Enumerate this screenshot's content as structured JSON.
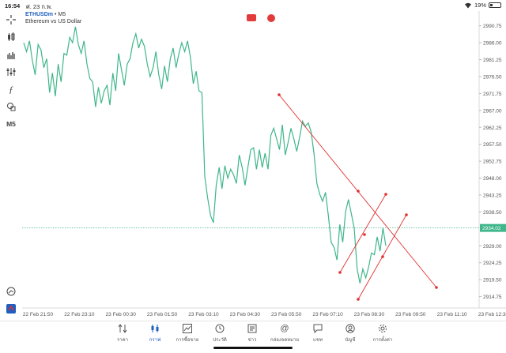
{
  "status_bar": {
    "time": "16:54",
    "date": "ศ. 23 ก.พ.",
    "battery": "19%",
    "battery_level": 0.19
  },
  "legend": {
    "symbol": "ETHUSDm",
    "timeframe": "M5",
    "description": "Ethereum vs US Dollar"
  },
  "toolbar": {
    "timeframe_label": "M5"
  },
  "chart_data": {
    "type": "line",
    "ylim": [
      2912,
      2994
    ],
    "x_tick_labels": [
      "22 Feb 21:50",
      "22 Feb 23:10",
      "23 Feb 00:30",
      "23 Feb 01:50",
      "23 Feb 03:10",
      "23 Feb 04:30",
      "23 Feb 05:50",
      "23 Feb 07:10",
      "23 Feb 08:30",
      "23 Feb 09:50",
      "23 Feb 11:10",
      "23 Feb 12:30"
    ],
    "y_ticks": [
      2990.75,
      2986.0,
      2981.25,
      2976.5,
      2971.75,
      2967.0,
      2962.25,
      2957.5,
      2952.75,
      2948.0,
      2943.25,
      2938.5,
      2929.0,
      2924.25,
      2919.5,
      2914.75
    ],
    "current_price": 2934.02,
    "series": [
      {
        "color": "#3fb68b",
        "values": [
          2986.0,
          2983.5,
          2986.5,
          2981.0,
          2977.0,
          2985.5,
          2984.0,
          2979.0,
          2981.5,
          2972.0,
          2977.5,
          2971.0,
          2980.0,
          2975.0,
          2983.0,
          2982.5,
          2987.5,
          2986.0,
          2990.5,
          2985.5,
          2983.0,
          2986.5,
          2980.0,
          2976.0,
          2975.0,
          2968.0,
          2973.5,
          2969.0,
          2972.5,
          2974.0,
          2968.5,
          2977.5,
          2972.5,
          2983.0,
          2978.5,
          2974.0,
          2980.0,
          2981.5,
          2986.0,
          2988.5,
          2984.5,
          2987.0,
          2985.0,
          2980.0,
          2976.5,
          2979.0,
          2983.5,
          2977.0,
          2973.0,
          2979.5,
          2975.0,
          2981.5,
          2984.5,
          2979.0,
          2983.0,
          2986.0,
          2983.5,
          2986.5,
          2982.0,
          2974.5,
          2978.0,
          2972.5,
          2972.0,
          2948.5,
          2942.5,
          2937.5,
          2935.5,
          2946.0,
          2951.0,
          2945.0,
          2951.5,
          2948.0,
          2950.5,
          2949.0,
          2946.5,
          2954.5,
          2951.0,
          2946.0,
          2951.0,
          2956.0,
          2956.5,
          2950.5,
          2956.0,
          2951.0,
          2955.0,
          2950.5,
          2960.0,
          2962.0,
          2959.0,
          2956.0,
          2963.0,
          2954.5,
          2958.0,
          2962.0,
          2959.0,
          2955.5,
          2959.5,
          2964.0,
          2962.5,
          2963.5,
          2961.0,
          2955.0,
          2946.5,
          2943.5,
          2941.5,
          2944.0,
          2937.5,
          2930.0,
          2928.5,
          2925.0,
          2935.0,
          2930.0,
          2938.5,
          2942.0,
          2938.0,
          2934.0,
          2922.5,
          2918.5,
          2922.5,
          2920.0,
          2923.0,
          2927.0,
          2926.5,
          2931.5,
          2927.5,
          2934.0,
          2929.0
        ]
      }
    ],
    "drawn_lines": [
      {
        "color": "#e03030",
        "points": [
          [
            2971.0
          ],
          [
            2918.5
          ]
        ]
      }
    ]
  },
  "tabs": [
    {
      "label": "ราคา",
      "icon": "quotes-icon"
    },
    {
      "label": "กราฟ",
      "icon": "chart-icon",
      "active": true
    },
    {
      "label": "การซื้อขาย",
      "icon": "trade-icon"
    },
    {
      "label": "ประวัติ",
      "icon": "history-icon"
    },
    {
      "label": "ข่าว",
      "icon": "news-icon"
    },
    {
      "label": "กล่องจดหมาย",
      "icon": "mailbox-icon"
    },
    {
      "label": "แชท",
      "icon": "chat-icon"
    },
    {
      "label": "บัญชี",
      "icon": "account-icon"
    },
    {
      "label": "การตั้งค่า",
      "icon": "settings-icon"
    }
  ],
  "colors": {
    "line": "#3fb68b",
    "drawing": "#e03030",
    "price_tag": "#3fb68b",
    "accent": "#1f5fbf"
  }
}
